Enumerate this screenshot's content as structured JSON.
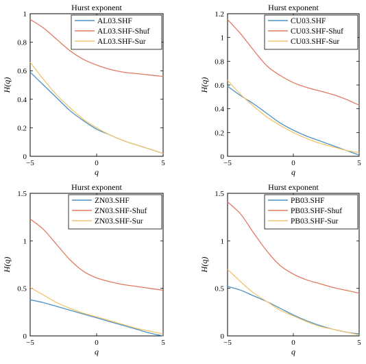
{
  "colors": {
    "blue": "#4a90c4",
    "red": "#e07a5f",
    "yellow": "#f2c46d"
  },
  "chart_data": [
    {
      "type": "line",
      "title": "Hurst exponent",
      "xlabel": "q",
      "ylabel": "H(q)",
      "xlim": [
        -5,
        5
      ],
      "ylim": [
        0,
        1
      ],
      "xticks": [
        -5,
        0,
        5
      ],
      "xtick_labels": [
        "−5",
        "0",
        "5"
      ],
      "yticks": [
        0,
        0.2,
        0.4,
        0.6,
        0.8,
        1
      ],
      "ytick_labels": [
        "0",
        "0.2",
        "0.4",
        "0.6",
        "0.8",
        "1"
      ],
      "legend_position": "top-right",
      "x": [
        -5,
        -4,
        -3,
        -2,
        -1,
        0,
        1,
        2,
        3,
        4,
        5
      ],
      "series": [
        {
          "name": "AL03.SHF",
          "color": "#4a90c4",
          "values": [
            0.59,
            0.5,
            0.41,
            0.32,
            0.25,
            0.19,
            0.15,
            0.11,
            0.08,
            0.05,
            0.02
          ]
        },
        {
          "name": "AL03.SHF-Shuf",
          "color": "#e07a5f",
          "values": [
            0.96,
            0.9,
            0.82,
            0.74,
            0.68,
            0.64,
            0.61,
            0.59,
            0.58,
            0.57,
            0.56
          ]
        },
        {
          "name": "AL03.SHF-Sur",
          "color": "#f2c46d",
          "values": [
            0.66,
            0.54,
            0.43,
            0.34,
            0.26,
            0.2,
            0.15,
            0.11,
            0.08,
            0.05,
            0.02
          ]
        }
      ]
    },
    {
      "type": "line",
      "title": "Hurst exponent",
      "xlabel": "q",
      "ylabel": "H(q)",
      "xlim": [
        -5,
        5
      ],
      "ylim": [
        0,
        1.2
      ],
      "xticks": [
        -5,
        0,
        5
      ],
      "xtick_labels": [
        "−5",
        "0",
        "5"
      ],
      "yticks": [
        0,
        0.2,
        0.4,
        0.6,
        0.8,
        1,
        1.2
      ],
      "ytick_labels": [
        "0",
        "0.2",
        "0.4",
        "0.6",
        "0.8",
        "1",
        "1.2"
      ],
      "legend_position": "top-right",
      "x": [
        -5,
        -4,
        -3,
        -2,
        -1,
        0,
        1,
        2,
        3,
        4,
        5
      ],
      "series": [
        {
          "name": "CU03.SHF",
          "color": "#4a90c4",
          "values": [
            0.59,
            0.51,
            0.44,
            0.36,
            0.28,
            0.22,
            0.17,
            0.13,
            0.09,
            0.05,
            0.01
          ]
        },
        {
          "name": "CU03.SHF-Shuf",
          "color": "#e07a5f",
          "values": [
            1.15,
            1.03,
            0.89,
            0.76,
            0.68,
            0.62,
            0.58,
            0.55,
            0.52,
            0.48,
            0.43
          ]
        },
        {
          "name": "CU03.SHF-Sur",
          "color": "#f2c46d",
          "values": [
            0.64,
            0.52,
            0.42,
            0.33,
            0.26,
            0.2,
            0.15,
            0.11,
            0.08,
            0.05,
            0.03
          ]
        }
      ]
    },
    {
      "type": "line",
      "title": "Hurst exponent",
      "xlabel": "q",
      "ylabel": "H(q)",
      "xlim": [
        -5,
        5
      ],
      "ylim": [
        0,
        1.5
      ],
      "xticks": [
        -5,
        0,
        5
      ],
      "xtick_labels": [
        "−5",
        "0",
        "5"
      ],
      "yticks": [
        0,
        0.5,
        1,
        1.5
      ],
      "ytick_labels": [
        "0",
        "0.5",
        "1",
        "1.5"
      ],
      "legend_position": "top-right",
      "x": [
        -5,
        -4,
        -3,
        -2,
        -1,
        0,
        1,
        2,
        3,
        4,
        5
      ],
      "series": [
        {
          "name": "ZN03.SHF",
          "color": "#4a90c4",
          "values": [
            0.38,
            0.35,
            0.31,
            0.27,
            0.23,
            0.19,
            0.15,
            0.11,
            0.07,
            0.03,
            0.0
          ]
        },
        {
          "name": "ZN03.SHF-Shuf",
          "color": "#e07a5f",
          "values": [
            1.23,
            1.12,
            0.96,
            0.8,
            0.68,
            0.61,
            0.57,
            0.54,
            0.52,
            0.5,
            0.48
          ]
        },
        {
          "name": "ZN03.SHF-Sur",
          "color": "#f2c46d",
          "values": [
            0.51,
            0.43,
            0.35,
            0.29,
            0.24,
            0.2,
            0.16,
            0.12,
            0.08,
            0.05,
            0.02
          ]
        }
      ]
    },
    {
      "type": "line",
      "title": "Hurst exponent",
      "xlabel": "q",
      "ylabel": "H(q)",
      "xlim": [
        -5,
        5
      ],
      "ylim": [
        0,
        1.5
      ],
      "xticks": [
        -5,
        0,
        5
      ],
      "xtick_labels": [
        "−5",
        "0",
        "5"
      ],
      "yticks": [
        0,
        0.5,
        1,
        1.5
      ],
      "ytick_labels": [
        "0",
        "0.5",
        "1",
        "1.5"
      ],
      "legend_position": "top-right",
      "x": [
        -5,
        -4,
        -3,
        -2,
        -1,
        0,
        1,
        2,
        3,
        4,
        5
      ],
      "series": [
        {
          "name": "PB03.SHF",
          "color": "#4a90c4",
          "values": [
            0.52,
            0.48,
            0.42,
            0.36,
            0.29,
            0.22,
            0.16,
            0.11,
            0.07,
            0.04,
            0.02
          ]
        },
        {
          "name": "PB03.SHF-Shuf",
          "color": "#e07a5f",
          "values": [
            1.41,
            1.28,
            1.08,
            0.89,
            0.74,
            0.65,
            0.59,
            0.55,
            0.51,
            0.48,
            0.45
          ]
        },
        {
          "name": "PB03.SHF-Sur",
          "color": "#f2c46d",
          "values": [
            0.7,
            0.57,
            0.45,
            0.36,
            0.27,
            0.21,
            0.15,
            0.1,
            0.07,
            0.04,
            0.01
          ]
        }
      ]
    }
  ]
}
